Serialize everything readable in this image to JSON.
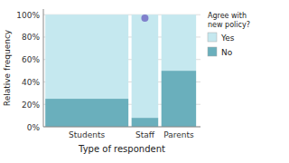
{
  "chart_data": {
    "type": "bar",
    "stacked": true,
    "grid": true,
    "xlabel": "Type of respondent",
    "ylabel": "Relative frequency",
    "legend_title": "Agree with new policy?",
    "categories": [
      "Students",
      "Staff",
      "Parents"
    ],
    "widths": [
      0.52,
      0.17,
      0.22
    ],
    "series": [
      {
        "name": "No",
        "color": "#6aafbc",
        "values": [
          0.25,
          0.08,
          0.5
        ]
      },
      {
        "name": "Yes",
        "color": "#c5e8ef",
        "values": [
          0.75,
          0.92,
          0.5
        ]
      }
    ],
    "markers": [
      {
        "category": "Staff",
        "value": 0.97,
        "color": "#8080cc"
      }
    ],
    "ylim": [
      0,
      1.05
    ],
    "yticks": [
      {
        "value": 0,
        "label": "0%"
      },
      {
        "value": 0.2,
        "label": "20%"
      },
      {
        "value": 0.4,
        "label": "40%"
      },
      {
        "value": 0.6,
        "label": "60%"
      },
      {
        "value": 0.8,
        "label": "80%"
      },
      {
        "value": 1.0,
        "label": "100%"
      }
    ]
  }
}
